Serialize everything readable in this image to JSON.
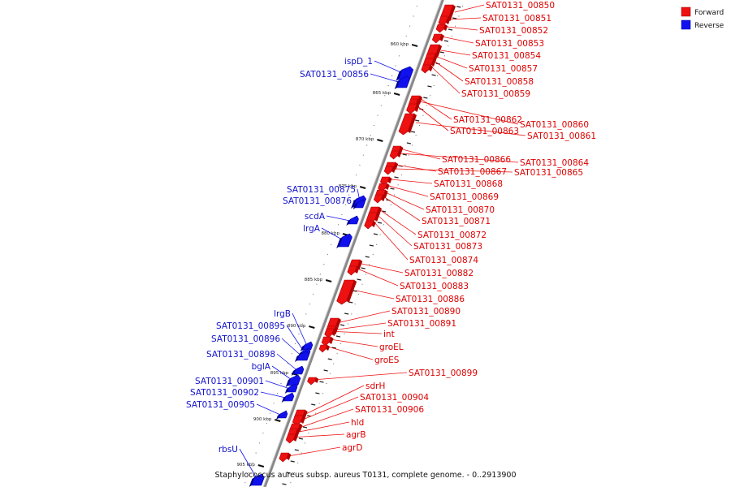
{
  "caption": "Staphylococcus aureus subsp. aureus T0131, complete genome. - 0..2913900",
  "legend": [
    {
      "label": "Forward",
      "color": "#ee1111"
    },
    {
      "label": "Reverse",
      "color": "#1111ee"
    }
  ],
  "ticks": [
    "860 kbp",
    "865 kbp",
    "870 kbp",
    "875 kbp",
    "880 kbp",
    "885 kbp",
    "890 kbp",
    "895 kbp",
    "900 kbp",
    "905 kbp"
  ],
  "forward_genes": [
    "SAT0131_00850",
    "SAT0131_00851",
    "SAT0131_00852",
    "SAT0131_00853",
    "SAT0131_00854",
    "SAT0131_00857",
    "SAT0131_00858",
    "SAT0131_00859",
    "SAT0131_00862",
    "SAT0131_00860",
    "SAT0131_00863",
    "SAT0131_00861",
    "SAT0131_00866",
    "SAT0131_00864",
    "SAT0131_00867",
    "SAT0131_00865",
    "SAT0131_00868",
    "SAT0131_00869",
    "SAT0131_00870",
    "SAT0131_00871",
    "SAT0131_00872",
    "SAT0131_00873",
    "SAT0131_00874",
    "SAT0131_00882",
    "SAT0131_00883",
    "SAT0131_00886",
    "SAT0131_00890",
    "SAT0131_00891",
    "int",
    "groEL",
    "groES",
    "SAT0131_00899",
    "sdrH",
    "SAT0131_00904",
    "SAT0131_00906",
    "hld",
    "agrB",
    "agrD"
  ],
  "reverse_genes": [
    "ispD_1",
    "SAT0131_00856",
    "SAT0131_00875",
    "SAT0131_00876",
    "scdA",
    "lrgA",
    "lrgB",
    "SAT0131_00895",
    "SAT0131_00896",
    "SAT0131_00898",
    "bglA",
    "SAT0131_00901",
    "SAT0131_00902",
    "SAT0131_00905",
    "rbsU"
  ]
}
